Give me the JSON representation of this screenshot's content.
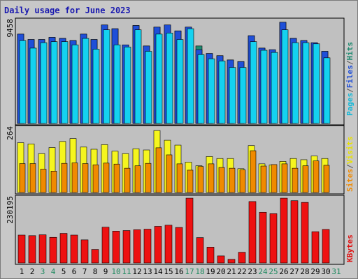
{
  "title": "Daily usage for June 2023",
  "legend": {
    "top": [
      {
        "text": "Hits",
        "color": "#1f8a70"
      },
      {
        "text": "/",
        "color": "#555555"
      },
      {
        "text": "Files",
        "color": "#1f4fd8"
      },
      {
        "text": "/",
        "color": "#555555"
      },
      {
        "text": "Pages",
        "color": "#12b9d8"
      }
    ],
    "middle": [
      {
        "text": "Visits",
        "color": "#e8e200"
      },
      {
        "text": "/",
        "color": "#555555"
      },
      {
        "text": "Sites",
        "color": "#f08a00"
      }
    ],
    "bottom": [
      {
        "text": "KBytes",
        "color": "#e01010"
      }
    ]
  },
  "colors": {
    "hits": "#1f8a70",
    "files": "#1f4fd8",
    "pages": "#14d2f0",
    "visits": "#f5f51e",
    "sites": "#f08a00",
    "kbytes": "#ee1111",
    "weekday": "#000000",
    "weekend": "#1f8a60"
  },
  "chart_data": [
    {
      "type": "bar",
      "panel": "hits-files-pages",
      "ymax_label": "9458",
      "ylim": [
        0,
        9458
      ],
      "categories": [
        "1",
        "2",
        "3",
        "4",
        "5",
        "6",
        "7",
        "8",
        "9",
        "10",
        "11",
        "12",
        "13",
        "14",
        "15",
        "16",
        "17",
        "18",
        "19",
        "20",
        "21",
        "22",
        "23",
        "24",
        "25",
        "26",
        "27",
        "28",
        "29",
        "30",
        "31"
      ],
      "series": [
        {
          "name": "Hits",
          "values": [
            8300,
            7800,
            7800,
            8000,
            7900,
            7700,
            8300,
            7800,
            9150,
            8800,
            7300,
            9100,
            7200,
            8950,
            9150,
            8600,
            8950,
            7200,
            6500,
            6300,
            5900,
            5750,
            8150,
            7000,
            6850,
            9400,
            7900,
            7700,
            7500,
            6700,
            null
          ]
        },
        {
          "name": "Files",
          "values": [
            8300,
            7800,
            7800,
            8000,
            7900,
            7700,
            8300,
            7800,
            9150,
            8800,
            7300,
            9100,
            7200,
            8950,
            9150,
            8600,
            8950,
            6850,
            6500,
            6300,
            5900,
            5750,
            8150,
            7000,
            6850,
            9400,
            7900,
            7700,
            7500,
            6700,
            null
          ]
        },
        {
          "name": "Pages",
          "values": [
            7700,
            7000,
            7500,
            7600,
            7600,
            7300,
            7900,
            6900,
            8700,
            7300,
            7100,
            8700,
            6700,
            8300,
            8400,
            7800,
            8800,
            6400,
            6000,
            5800,
            5200,
            5200,
            7600,
            6800,
            6600,
            8700,
            7500,
            7500,
            7400,
            6100,
            null
          ]
        }
      ]
    },
    {
      "type": "bar",
      "panel": "visits-sites",
      "ymax_label": "264",
      "ylim": [
        0,
        264
      ],
      "categories": [
        "1",
        "2",
        "3",
        "4",
        "5",
        "6",
        "7",
        "8",
        "9",
        "10",
        "11",
        "12",
        "13",
        "14",
        "15",
        "16",
        "17",
        "18",
        "19",
        "20",
        "21",
        "22",
        "23",
        "24",
        "25",
        "26",
        "27",
        "28",
        "29",
        "30",
        "31"
      ],
      "series": [
        {
          "name": "Visits",
          "values": [
            205,
            200,
            160,
            185,
            210,
            222,
            187,
            178,
            197,
            170,
            160,
            180,
            175,
            255,
            215,
            195,
            125,
            110,
            148,
            140,
            140,
            98,
            193,
            118,
            113,
            128,
            140,
            135,
            150,
            140,
            null
          ]
        },
        {
          "name": "Sites",
          "values": [
            119,
            119,
            96,
            88,
            120,
            122,
            119,
            114,
            121,
            117,
            100,
            110,
            120,
            184,
            155,
            118,
            92,
            107,
            118,
            103,
            100,
            93,
            172,
            109,
            115,
            118,
            100,
            110,
            130,
            112,
            null
          ]
        }
      ]
    },
    {
      "type": "bar",
      "panel": "kbytes",
      "ymax_label": "230195",
      "ylim": [
        0,
        230195
      ],
      "categories": [
        "1",
        "2",
        "3",
        "4",
        "5",
        "6",
        "7",
        "8",
        "9",
        "10",
        "11",
        "12",
        "13",
        "14",
        "15",
        "16",
        "17",
        "18",
        "19",
        "20",
        "21",
        "22",
        "23",
        "24",
        "25",
        "26",
        "27",
        "28",
        "29",
        "30",
        "31"
      ],
      "series": [
        {
          "name": "KBytes",
          "values": [
            99000,
            97000,
            100000,
            91000,
            105000,
            99000,
            82000,
            48000,
            127000,
            113000,
            115000,
            118000,
            120000,
            130000,
            134000,
            126000,
            230000,
            90000,
            56000,
            25000,
            13000,
            38000,
            218000,
            180000,
            175000,
            230000,
            221000,
            215000,
            111000,
            119000,
            null
          ]
        }
      ]
    }
  ],
  "days": [
    {
      "label": "1",
      "weekend": false
    },
    {
      "label": "2",
      "weekend": false
    },
    {
      "label": "3",
      "weekend": true
    },
    {
      "label": "4",
      "weekend": true
    },
    {
      "label": "5",
      "weekend": false
    },
    {
      "label": "6",
      "weekend": false
    },
    {
      "label": "7",
      "weekend": false
    },
    {
      "label": "8",
      "weekend": false
    },
    {
      "label": "9",
      "weekend": false
    },
    {
      "label": "10",
      "weekend": true
    },
    {
      "label": "11",
      "weekend": true
    },
    {
      "label": "12",
      "weekend": false
    },
    {
      "label": "13",
      "weekend": false
    },
    {
      "label": "14",
      "weekend": false
    },
    {
      "label": "15",
      "weekend": false
    },
    {
      "label": "16",
      "weekend": false
    },
    {
      "label": "17",
      "weekend": true
    },
    {
      "label": "18",
      "weekend": true
    },
    {
      "label": "19",
      "weekend": false
    },
    {
      "label": "20",
      "weekend": false
    },
    {
      "label": "21",
      "weekend": false
    },
    {
      "label": "22",
      "weekend": false
    },
    {
      "label": "23",
      "weekend": false
    },
    {
      "label": "24",
      "weekend": true
    },
    {
      "label": "25",
      "weekend": true
    },
    {
      "label": "26",
      "weekend": false
    },
    {
      "label": "27",
      "weekend": false
    },
    {
      "label": "28",
      "weekend": false
    },
    {
      "label": "29",
      "weekend": false
    },
    {
      "label": "30",
      "weekend": false
    },
    {
      "label": "31",
      "weekend": true
    }
  ]
}
